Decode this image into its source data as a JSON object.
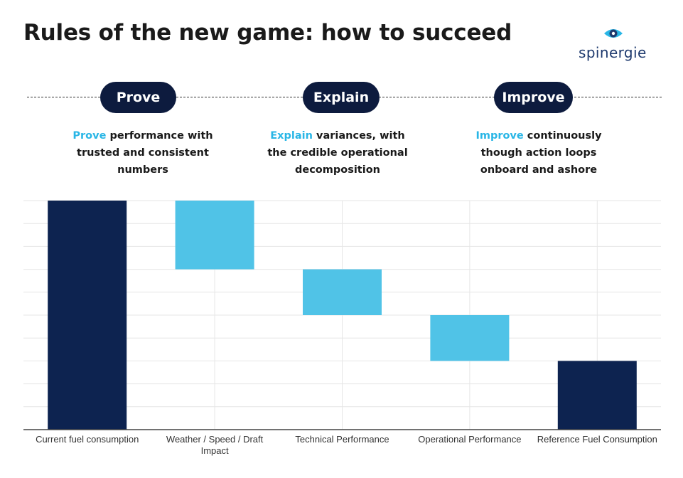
{
  "title": "Rules of the new game: how to succeed",
  "logo": {
    "text": "spinergie",
    "icon": "eye-icon",
    "color": "#1e3a6e"
  },
  "steps": [
    {
      "label": "Prove",
      "highlight": "Prove",
      "line1_rest": " performance with",
      "line2": "trusted and consistent",
      "line3": "numbers"
    },
    {
      "label": "Explain",
      "highlight": "Explain",
      "line1_rest": " variances, with",
      "line2": "the credible operational",
      "line3": "decomposition"
    },
    {
      "label": "Improve",
      "highlight": "Improve",
      "line1_rest": " continuously",
      "line2": "though action loops",
      "line3": "onboard and ashore"
    }
  ],
  "colors": {
    "dark": "#0d2350",
    "light": "#50c3e7",
    "highlight": "#29b6e6",
    "pill": "#0d1b3e"
  },
  "chart_data": {
    "type": "bar",
    "subtype": "waterfall",
    "categories": [
      "Current fuel consumption",
      "Weather / Speed / Draft Impact",
      "Technical Performance",
      "Operational Performance",
      "Reference Fuel Consumption"
    ],
    "bars": [
      {
        "start": 0,
        "end": 10,
        "kind": "total"
      },
      {
        "start": 7,
        "end": 10,
        "kind": "delta"
      },
      {
        "start": 5,
        "end": 7,
        "kind": "delta"
      },
      {
        "start": 3,
        "end": 5,
        "kind": "delta"
      },
      {
        "start": 0,
        "end": 3,
        "kind": "total"
      }
    ],
    "ylim": [
      0,
      10
    ],
    "grid": true,
    "title": "",
    "xlabel": "",
    "ylabel": ""
  }
}
